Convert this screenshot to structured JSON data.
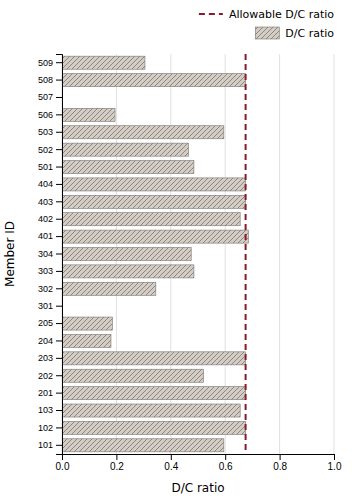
{
  "chart_data": {
    "type": "bar",
    "orientation": "horizontal",
    "categories": [
      "509",
      "508",
      "507",
      "506",
      "503",
      "502",
      "501",
      "404",
      "403",
      "402",
      "401",
      "304",
      "303",
      "302",
      "301",
      "205",
      "204",
      "203",
      "202",
      "201",
      "103",
      "102",
      "101"
    ],
    "series": [
      {
        "name": "D/C ratio",
        "color": "#d4cdc5",
        "values": [
          0.305,
          0.675,
          0.0,
          0.195,
          0.595,
          0.465,
          0.485,
          0.675,
          0.675,
          0.655,
          0.685,
          0.475,
          0.485,
          0.345,
          0.0,
          0.185,
          0.18,
          0.675,
          0.52,
          0.675,
          0.655,
          0.675,
          0.595
        ]
      }
    ],
    "reference_line": {
      "name": "Allowable D/C ratio",
      "value": 0.675,
      "color": "#8b1a2b",
      "line_style": "dashed"
    },
    "xlabel": "D/C ratio",
    "ylabel": "Member ID",
    "xlim": [
      0.0,
      1.0
    ],
    "xticks": [
      {
        "value": 0.0,
        "label": "0.0"
      },
      0.2,
      0.4,
      0.6,
      0.8,
      {
        "value": 1.0,
        "label": "1.0"
      }
    ],
    "grid": "x",
    "legend": "upper right"
  }
}
